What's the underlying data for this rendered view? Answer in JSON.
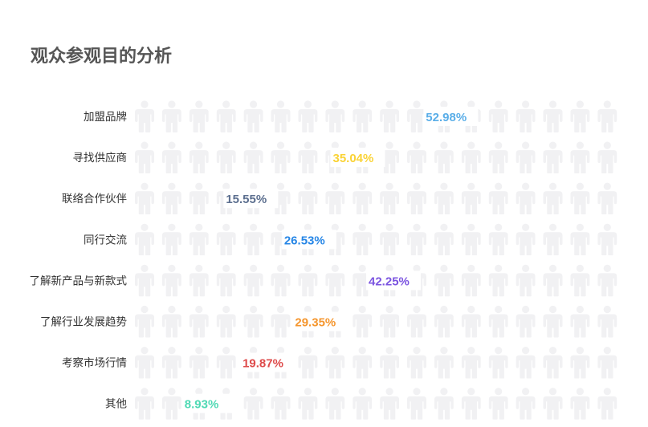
{
  "chart_data": {
    "type": "pictograph",
    "title": "观众参观目的分析",
    "icon": "person-icon",
    "icons_per_row": 18,
    "icon_unit_percent": 5,
    "background_icon_color": "#f1f1f3",
    "series": [
      {
        "category": "加盟品牌",
        "value": 52.98,
        "label": "52.98%",
        "color": "#5aaee8"
      },
      {
        "category": "寻找供应商",
        "value": 35.04,
        "label": "35.04%",
        "color": "#fad336"
      },
      {
        "category": "联络合作伙伴",
        "value": 15.55,
        "label": "15.55%",
        "color": "#5c6f8f"
      },
      {
        "category": "同行交流",
        "value": 26.53,
        "label": "26.53%",
        "color": "#2686e6"
      },
      {
        "category": "了解新产品与新款式",
        "value": 42.25,
        "label": "42.25%",
        "color": "#7b54e0"
      },
      {
        "category": "了解行业发展趋势",
        "value": 29.35,
        "label": "29.35%",
        "color": "#f5962e"
      },
      {
        "category": "考察市场行情",
        "value": 19.87,
        "label": "19.87%",
        "color": "#de4b4b"
      },
      {
        "category": "其他",
        "value": 8.93,
        "label": "8.93%",
        "color": "#4fd9b4"
      }
    ]
  }
}
